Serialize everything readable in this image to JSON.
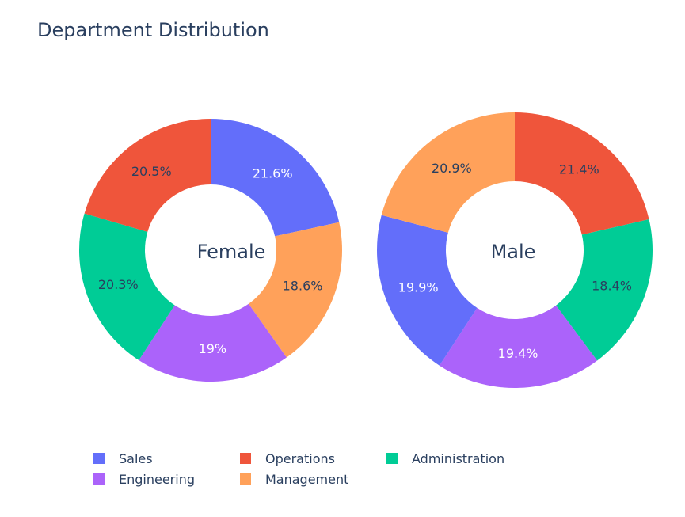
{
  "chart_data": {
    "type": "pie",
    "title": "Department Distribution",
    "colors": {
      "Sales": "#636efa",
      "Operations": "#ef553b",
      "Administration": "#00cc96",
      "Engineering": "#ab63fa",
      "Management": "#ffa15a"
    },
    "legend": {
      "placement": "bottom",
      "entries": [
        "Sales",
        "Operations",
        "Administration",
        "Engineering",
        "Management"
      ]
    },
    "charts": [
      {
        "name": "Female",
        "hole_label": "Female",
        "slices": [
          {
            "category": "Sales",
            "value": 21.6,
            "label": "21.6%"
          },
          {
            "category": "Management",
            "value": 18.6,
            "label": "18.6%"
          },
          {
            "category": "Engineering",
            "value": 19.0,
            "label": "19%"
          },
          {
            "category": "Administration",
            "value": 20.3,
            "label": "20.3%"
          },
          {
            "category": "Operations",
            "value": 20.5,
            "label": "20.5%"
          }
        ]
      },
      {
        "name": "Male",
        "hole_label": "Male",
        "slices": [
          {
            "category": "Operations",
            "value": 21.4,
            "label": "21.4%"
          },
          {
            "category": "Administration",
            "value": 18.4,
            "label": "18.4%"
          },
          {
            "category": "Engineering",
            "value": 19.4,
            "label": "19.4%"
          },
          {
            "category": "Sales",
            "value": 19.9,
            "label": "19.9%"
          },
          {
            "category": "Management",
            "value": 20.9,
            "label": "20.9%"
          }
        ]
      }
    ]
  }
}
